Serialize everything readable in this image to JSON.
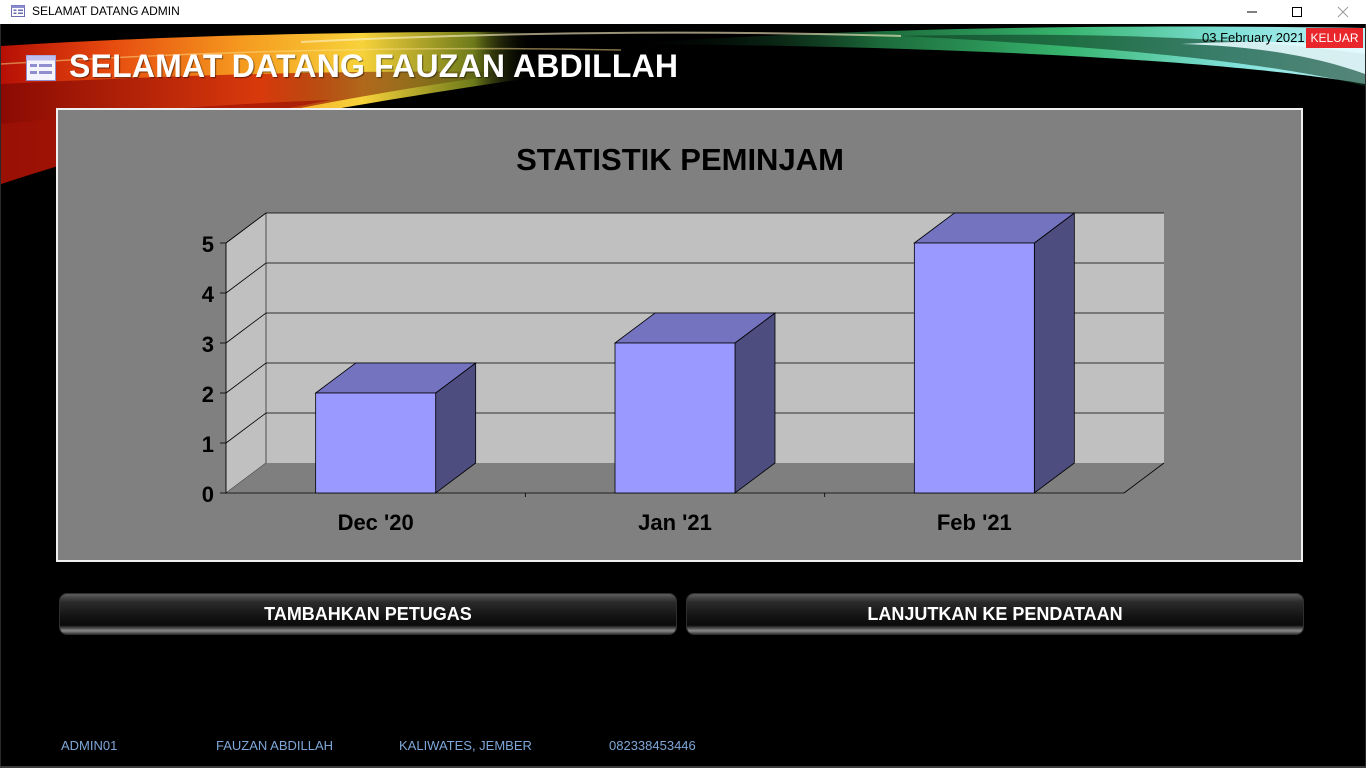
{
  "window": {
    "title": "SELAMAT DATANG ADMIN",
    "icon": "form-icon",
    "controls": [
      "minimize-icon",
      "maximize-icon",
      "close-icon"
    ]
  },
  "header": {
    "title": "SELAMAT DATANG FAUZAN ABDILLAH",
    "date": "03 February 2021",
    "logout_label": "KELUAR",
    "logout_color": "#e8262b"
  },
  "chart_data": {
    "type": "bar",
    "title": "STATISTIK PEMINJAM",
    "categories": [
      "Dec '20",
      "Jan '21",
      "Feb '21"
    ],
    "values": [
      2,
      3,
      5
    ],
    "ylim": [
      0,
      5
    ],
    "yticks": [
      "0",
      "1",
      "2",
      "3",
      "4",
      "5"
    ],
    "grid": true,
    "style": "3d-column",
    "bar_color": "#9999ff",
    "legend": "none"
  },
  "buttons": {
    "add_staff": "TAMBAHKAN PETUGAS",
    "continue": "LANJUTKAN KE PENDATAAN"
  },
  "footer": {
    "user_id": "ADMIN01",
    "name": "FAUZAN ABDILLAH",
    "address": "KALIWATES, JEMBER",
    "phone": "082338453446"
  }
}
